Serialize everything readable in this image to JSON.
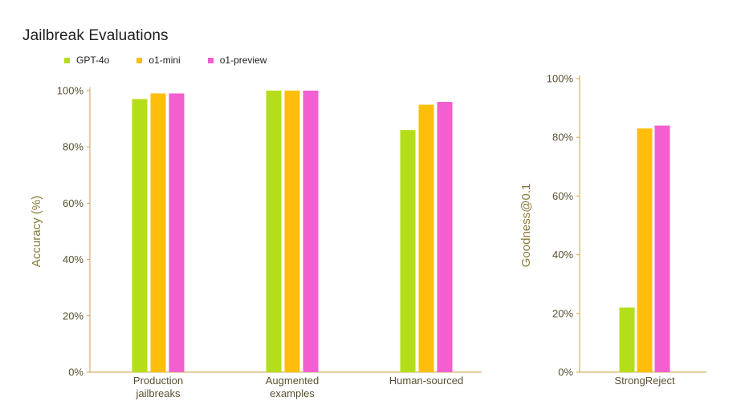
{
  "title": "Jailbreak Evaluations",
  "colors": {
    "axis": "#c8a34a",
    "tick_text": "#5a5030",
    "grid": "#ead9a6"
  },
  "legend": [
    {
      "name": "GPT-4o",
      "color": "#b5de1a"
    },
    {
      "name": "o1-mini",
      "color": "#ffbe0b"
    },
    {
      "name": "o1-preview",
      "color": "#f35ed0"
    }
  ],
  "chart_data": [
    {
      "type": "bar",
      "title": "Jailbreak Evaluations",
      "ylabel": "Accuracy (%)",
      "xlabel": "",
      "ylim": [
        0,
        100
      ],
      "yticks": [
        "0%",
        "20%",
        "40%",
        "60%",
        "80%",
        "100%"
      ],
      "categories": [
        [
          "Production",
          "jailbreaks"
        ],
        [
          "Augmented",
          "examples"
        ],
        [
          "Human-sourced"
        ]
      ],
      "series": [
        {
          "name": "GPT-4o",
          "values": [
            97,
            100,
            86
          ]
        },
        {
          "name": "o1-mini",
          "values": [
            99,
            100,
            95
          ]
        },
        {
          "name": "o1-preview",
          "values": [
            99,
            100,
            96
          ]
        }
      ]
    },
    {
      "type": "bar",
      "title": "",
      "ylabel": "Goodness@0.1",
      "xlabel": "",
      "ylim": [
        0,
        100
      ],
      "yticks": [
        "0%",
        "20%",
        "40%",
        "60%",
        "80%",
        "100%"
      ],
      "categories": [
        [
          "StrongReject"
        ]
      ],
      "series": [
        {
          "name": "GPT-4o",
          "values": [
            22
          ]
        },
        {
          "name": "o1-mini",
          "values": [
            83
          ]
        },
        {
          "name": "o1-preview",
          "values": [
            84
          ]
        }
      ]
    }
  ]
}
